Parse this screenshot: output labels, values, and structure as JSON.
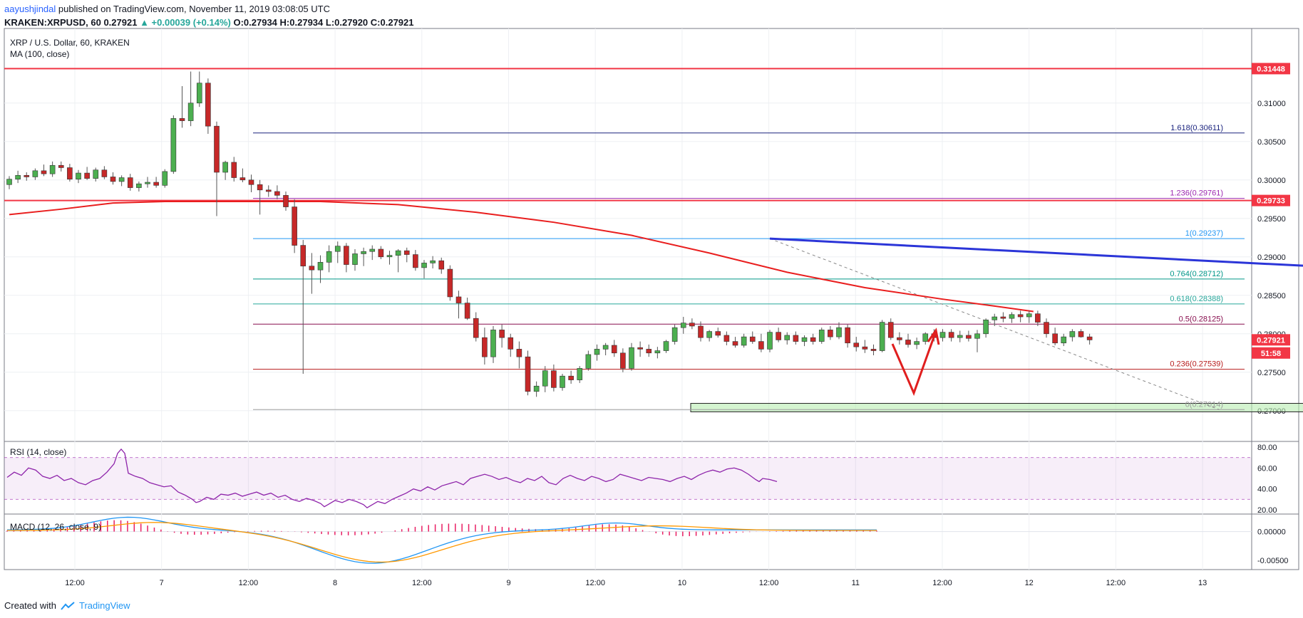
{
  "header": {
    "author": "aayushjindal",
    "published": "published on TradingView.com, November 11, 2019 03:08:05 UTC",
    "symbol": "KRAKEN:XRPUSD, 60",
    "last": "0.27921",
    "change": "▲ +0.00039 (+0.14%)",
    "ohlc": {
      "O": "0.27934",
      "H": "0.27934",
      "L": "0.27920",
      "C": "0.27921"
    }
  },
  "footer": {
    "created_with": "Created with",
    "brand": "TradingView"
  },
  "chart_data": {
    "type": "candlestick",
    "title": "XRP / U.S. Dollar, 60, KRAKEN",
    "indicator_label": "MA (100, close)",
    "ylim": [
      0.266,
      0.3197
    ],
    "price_axis_ticks": [
      "0.31000",
      "0.30500",
      "0.30000",
      "0.29500",
      "0.29000",
      "0.28500",
      "0.28000",
      "0.27500",
      "0.27000"
    ],
    "x_tick_labels": [
      "12:00",
      "7",
      "12:00",
      "8",
      "12:00",
      "9",
      "12:00",
      "10",
      "12:00",
      "11",
      "12:00",
      "12",
      "12:00",
      "13"
    ],
    "price_badges": [
      {
        "label": "0.31448",
        "value": 0.31448,
        "color": "#f23645"
      },
      {
        "label": "0.29733",
        "value": 0.29733,
        "color": "#f23645"
      },
      {
        "label": "0.27921",
        "value": 0.27921,
        "color": "#f23645"
      },
      {
        "label": "51:58",
        "value": 0.2775,
        "color": "#f23645"
      }
    ],
    "horizontal_lines": [
      {
        "value": 0.31448,
        "color": "#f23645"
      },
      {
        "value": 0.29733,
        "color": "#f23645"
      }
    ],
    "fib_levels": [
      {
        "label": "1.618(0.30611)",
        "value": 0.30611,
        "color": "#1a237e"
      },
      {
        "label": "1.236(0.29761)",
        "value": 0.29761,
        "color": "#9c27b0"
      },
      {
        "label": "1(0.29237)",
        "value": 0.29237,
        "color": "#2196f3"
      },
      {
        "label": "0.764(0.28712)",
        "value": 0.28712,
        "color": "#009688"
      },
      {
        "label": "0.618(0.28388)",
        "value": 0.28388,
        "color": "#26a69a"
      },
      {
        "label": "0.5(0.28125)",
        "value": 0.28125,
        "color": "#880e4f"
      },
      {
        "label": "0.236(0.27539)",
        "value": 0.27539,
        "color": "#b71c1c"
      },
      {
        "label": "0(0.27014)",
        "value": 0.27014,
        "color": "#9e9e9e"
      }
    ],
    "trendline": {
      "from": [
        88,
        0.29237
      ],
      "to": [
        283,
        0.28125
      ],
      "color": "#2b35d8"
    },
    "support_zone": {
      "from_index": 80,
      "to_index": 284,
      "low": 0.26985,
      "high": 0.27095,
      "color": "#b7ecb0"
    },
    "candles_ohlc_hourly": [
      [
        0.2994,
        0.3005,
        0.2988,
        0.3001
      ],
      [
        0.3001,
        0.3012,
        0.2996,
        0.3006
      ],
      [
        0.3006,
        0.301,
        0.2999,
        0.3004
      ],
      [
        0.3004,
        0.3015,
        0.3,
        0.3012
      ],
      [
        0.3012,
        0.302,
        0.3005,
        0.3008
      ],
      [
        0.3008,
        0.3024,
        0.3004,
        0.3019
      ],
      [
        0.3019,
        0.3024,
        0.3011,
        0.3016
      ],
      [
        0.3016,
        0.3021,
        0.2998,
        0.3001
      ],
      [
        0.3001,
        0.3013,
        0.2996,
        0.3009
      ],
      [
        0.3009,
        0.3017,
        0.3,
        0.3002
      ],
      [
        0.3002,
        0.3016,
        0.2998,
        0.3013
      ],
      [
        0.3013,
        0.3018,
        0.3001,
        0.3004
      ],
      [
        0.3004,
        0.301,
        0.2994,
        0.2998
      ],
      [
        0.2998,
        0.3006,
        0.2992,
        0.3003
      ],
      [
        0.3003,
        0.3008,
        0.2986,
        0.299
      ],
      [
        0.299,
        0.2998,
        0.2985,
        0.2995
      ],
      [
        0.2995,
        0.3004,
        0.299,
        0.2997
      ],
      [
        0.2997,
        0.3004,
        0.299,
        0.2993
      ],
      [
        0.2993,
        0.3014,
        0.299,
        0.3011
      ],
      [
        0.3011,
        0.3084,
        0.3008,
        0.308
      ],
      [
        0.308,
        0.3122,
        0.3068,
        0.3077
      ],
      [
        0.3077,
        0.3141,
        0.307,
        0.31
      ],
      [
        0.31,
        0.3141,
        0.3095,
        0.3126
      ],
      [
        0.3126,
        0.3132,
        0.306,
        0.307
      ],
      [
        0.307,
        0.3076,
        0.2953,
        0.301
      ],
      [
        0.301,
        0.3025,
        0.3,
        0.3023
      ],
      [
        0.3023,
        0.303,
        0.2998,
        0.3003
      ],
      [
        0.3003,
        0.3015,
        0.2997,
        0.3
      ],
      [
        0.3,
        0.3007,
        0.2984,
        0.2994
      ],
      [
        0.2994,
        0.3,
        0.2955,
        0.2987
      ],
      [
        0.2987,
        0.2993,
        0.2978,
        0.2985
      ],
      [
        0.2985,
        0.2993,
        0.2975,
        0.298
      ],
      [
        0.298,
        0.2985,
        0.296,
        0.2965
      ],
      [
        0.2965,
        0.2975,
        0.2905,
        0.2915
      ],
      [
        0.2915,
        0.2922,
        0.2748,
        0.2888
      ],
      [
        0.2888,
        0.2905,
        0.2852,
        0.2883
      ],
      [
        0.2883,
        0.2902,
        0.2866,
        0.2893
      ],
      [
        0.2893,
        0.2915,
        0.288,
        0.2907
      ],
      [
        0.2907,
        0.292,
        0.2892,
        0.2914
      ],
      [
        0.2914,
        0.2918,
        0.288,
        0.289
      ],
      [
        0.289,
        0.291,
        0.2882,
        0.2904
      ],
      [
        0.2904,
        0.2912,
        0.2888,
        0.2907
      ],
      [
        0.2907,
        0.2915,
        0.2896,
        0.291
      ],
      [
        0.291,
        0.2914,
        0.2897,
        0.29
      ],
      [
        0.29,
        0.2908,
        0.289,
        0.2902
      ],
      [
        0.2902,
        0.291,
        0.288,
        0.2908
      ],
      [
        0.2908,
        0.2912,
        0.2893,
        0.2903
      ],
      [
        0.2903,
        0.2909,
        0.2882,
        0.2886
      ],
      [
        0.2886,
        0.2896,
        0.2872,
        0.2892
      ],
      [
        0.2892,
        0.2901,
        0.2885,
        0.2895
      ],
      [
        0.2895,
        0.2899,
        0.2878,
        0.2884
      ],
      [
        0.2884,
        0.2889,
        0.2843,
        0.2848
      ],
      [
        0.2848,
        0.2856,
        0.282,
        0.284
      ],
      [
        0.284,
        0.2847,
        0.2818,
        0.282
      ],
      [
        0.282,
        0.2828,
        0.279,
        0.2795
      ],
      [
        0.2795,
        0.2808,
        0.276,
        0.277
      ],
      [
        0.277,
        0.281,
        0.2762,
        0.2805
      ],
      [
        0.2805,
        0.2812,
        0.2782,
        0.2795
      ],
      [
        0.2795,
        0.28,
        0.277,
        0.278
      ],
      [
        0.278,
        0.279,
        0.2755,
        0.277
      ],
      [
        0.277,
        0.2778,
        0.272,
        0.2725
      ],
      [
        0.2725,
        0.2738,
        0.2718,
        0.2732
      ],
      [
        0.2732,
        0.2758,
        0.2724,
        0.2752
      ],
      [
        0.2752,
        0.276,
        0.2725,
        0.273
      ],
      [
        0.273,
        0.2748,
        0.2726,
        0.2745
      ],
      [
        0.2745,
        0.2752,
        0.2735,
        0.274
      ],
      [
        0.274,
        0.2758,
        0.2736,
        0.2755
      ],
      [
        0.2755,
        0.2778,
        0.2752,
        0.2773
      ],
      [
        0.2773,
        0.2786,
        0.2765,
        0.278
      ],
      [
        0.278,
        0.2788,
        0.2772,
        0.2785
      ],
      [
        0.2785,
        0.2792,
        0.277,
        0.2775
      ],
      [
        0.2775,
        0.2781,
        0.275,
        0.2755
      ],
      [
        0.2755,
        0.2788,
        0.2752,
        0.2782
      ],
      [
        0.2782,
        0.279,
        0.277,
        0.278
      ],
      [
        0.278,
        0.2786,
        0.277,
        0.2775
      ],
      [
        0.2775,
        0.2783,
        0.2768,
        0.2778
      ],
      [
        0.2778,
        0.2792,
        0.2775,
        0.279
      ],
      [
        0.279,
        0.2812,
        0.2786,
        0.2808
      ],
      [
        0.2808,
        0.2822,
        0.28,
        0.2814
      ],
      [
        0.2814,
        0.282,
        0.2806,
        0.281
      ],
      [
        0.281,
        0.2816,
        0.279,
        0.2795
      ],
      [
        0.2795,
        0.2805,
        0.279,
        0.2803
      ],
      [
        0.2803,
        0.2808,
        0.2795,
        0.2798
      ],
      [
        0.2798,
        0.2803,
        0.2785,
        0.279
      ],
      [
        0.279,
        0.2796,
        0.2782,
        0.2785
      ],
      [
        0.2785,
        0.28,
        0.2782,
        0.2796
      ],
      [
        0.2796,
        0.2803,
        0.2787,
        0.279
      ],
      [
        0.279,
        0.28,
        0.2776,
        0.278
      ],
      [
        0.278,
        0.2805,
        0.2776,
        0.2802
      ],
      [
        0.2802,
        0.2808,
        0.2789,
        0.2792
      ],
      [
        0.2792,
        0.2802,
        0.2786,
        0.2798
      ],
      [
        0.2798,
        0.2803,
        0.2786,
        0.279
      ],
      [
        0.279,
        0.2798,
        0.2784,
        0.2795
      ],
      [
        0.2795,
        0.28,
        0.2786,
        0.279
      ],
      [
        0.279,
        0.2808,
        0.2787,
        0.2805
      ],
      [
        0.2805,
        0.281,
        0.2792,
        0.2796
      ],
      [
        0.2796,
        0.2815,
        0.2793,
        0.2808
      ],
      [
        0.2808,
        0.2812,
        0.2782,
        0.2788
      ],
      [
        0.2788,
        0.2796,
        0.2777,
        0.2783
      ],
      [
        0.2783,
        0.2792,
        0.2775,
        0.278
      ],
      [
        0.278,
        0.2786,
        0.2772,
        0.2778
      ],
      [
        0.2778,
        0.2818,
        0.2776,
        0.2815
      ],
      [
        0.2815,
        0.282,
        0.2792,
        0.2795
      ],
      [
        0.2795,
        0.2802,
        0.2786,
        0.2792
      ],
      [
        0.2792,
        0.28,
        0.2782,
        0.2786
      ],
      [
        0.2786,
        0.2795,
        0.278,
        0.279
      ],
      [
        0.279,
        0.2802,
        0.2786,
        0.28
      ],
      [
        0.28,
        0.2806,
        0.279,
        0.2795
      ],
      [
        0.2795,
        0.2806,
        0.279,
        0.2802
      ],
      [
        0.2802,
        0.2806,
        0.279,
        0.2795
      ],
      [
        0.2795,
        0.2804,
        0.2789,
        0.2798
      ],
      [
        0.2798,
        0.2804,
        0.279,
        0.2794
      ],
      [
        0.2794,
        0.2805,
        0.2776,
        0.28
      ],
      [
        0.28,
        0.282,
        0.2795,
        0.2818
      ],
      [
        0.2818,
        0.2826,
        0.281,
        0.2822
      ],
      [
        0.2822,
        0.2828,
        0.2815,
        0.282
      ],
      [
        0.282,
        0.2828,
        0.2814,
        0.2825
      ],
      [
        0.2825,
        0.283,
        0.2815,
        0.2822
      ],
      [
        0.2822,
        0.283,
        0.2814,
        0.2826
      ],
      [
        0.2826,
        0.283,
        0.281,
        0.2815
      ],
      [
        0.2815,
        0.282,
        0.2795,
        0.28
      ],
      [
        0.28,
        0.2808,
        0.2785,
        0.2788
      ],
      [
        0.2788,
        0.28,
        0.2784,
        0.2796
      ],
      [
        0.2796,
        0.2806,
        0.279,
        0.2803
      ],
      [
        0.2803,
        0.2806,
        0.2795,
        0.2796
      ],
      [
        0.2796,
        0.28,
        0.2786,
        0.2792
      ]
    ],
    "ma100": [
      [
        0,
        0.2955
      ],
      [
        20,
        0.2962
      ],
      [
        40,
        0.297
      ],
      [
        60,
        0.2972
      ],
      [
        80,
        0.2972
      ],
      [
        120,
        0.2972
      ],
      [
        150,
        0.2968
      ],
      [
        180,
        0.2958
      ],
      [
        210,
        0.2945
      ],
      [
        240,
        0.2928
      ],
      [
        270,
        0.2905
      ],
      [
        300,
        0.288
      ],
      [
        330,
        0.286
      ],
      [
        360,
        0.2845
      ],
      [
        380,
        0.2836
      ],
      [
        395,
        0.2829
      ]
    ],
    "rsi": {
      "label": "RSI (14, close)",
      "levels": [
        70,
        30
      ],
      "ticks": [
        "80.00",
        "60.00",
        "40.00",
        "20.00"
      ],
      "ylim": [
        16,
        84
      ],
      "values": [
        [
          0,
          51
        ],
        [
          10,
          56
        ],
        [
          20,
          53
        ],
        [
          30,
          60
        ],
        [
          40,
          58
        ],
        [
          50,
          52
        ],
        [
          60,
          50
        ],
        [
          70,
          53
        ],
        [
          80,
          48
        ],
        [
          90,
          50
        ],
        [
          100,
          46
        ],
        [
          110,
          44
        ],
        [
          120,
          48
        ],
        [
          130,
          50
        ],
        [
          140,
          56
        ],
        [
          150,
          64
        ],
        [
          155,
          74
        ],
        [
          160,
          78
        ],
        [
          165,
          74
        ],
        [
          170,
          55
        ],
        [
          180,
          52
        ],
        [
          190,
          50
        ],
        [
          200,
          46
        ],
        [
          210,
          44
        ],
        [
          220,
          42
        ],
        [
          230,
          43
        ],
        [
          240,
          37
        ],
        [
          250,
          34
        ],
        [
          260,
          30
        ],
        [
          265,
          27
        ],
        [
          270,
          28
        ],
        [
          280,
          32
        ],
        [
          290,
          30
        ],
        [
          300,
          35
        ],
        [
          310,
          34
        ],
        [
          320,
          36
        ],
        [
          330,
          33
        ],
        [
          340,
          35
        ],
        [
          350,
          37
        ],
        [
          360,
          34
        ],
        [
          370,
          36
        ],
        [
          380,
          32
        ],
        [
          390,
          34
        ],
        [
          400,
          30
        ],
        [
          410,
          28
        ],
        [
          420,
          31
        ],
        [
          430,
          29
        ],
        [
          440,
          26
        ],
        [
          445,
          23
        ],
        [
          450,
          25
        ],
        [
          460,
          29
        ],
        [
          470,
          27
        ],
        [
          480,
          30
        ],
        [
          490,
          28
        ],
        [
          500,
          25
        ],
        [
          505,
          22
        ],
        [
          510,
          24
        ],
        [
          520,
          28
        ],
        [
          530,
          26
        ],
        [
          540,
          30
        ],
        [
          550,
          33
        ],
        [
          560,
          36
        ],
        [
          570,
          40
        ],
        [
          580,
          38
        ],
        [
          590,
          42
        ],
        [
          600,
          39
        ],
        [
          610,
          43
        ],
        [
          620,
          45
        ],
        [
          630,
          47
        ],
        [
          640,
          44
        ],
        [
          650,
          50
        ],
        [
          660,
          52
        ],
        [
          670,
          54
        ],
        [
          680,
          52
        ],
        [
          690,
          49
        ],
        [
          700,
          51
        ],
        [
          710,
          48
        ],
        [
          720,
          46
        ],
        [
          730,
          50
        ],
        [
          740,
          48
        ],
        [
          750,
          52
        ],
        [
          760,
          46
        ],
        [
          770,
          44
        ],
        [
          780,
          50
        ],
        [
          790,
          53
        ],
        [
          800,
          50
        ],
        [
          810,
          48
        ],
        [
          820,
          52
        ],
        [
          830,
          50
        ],
        [
          840,
          47
        ],
        [
          850,
          49
        ],
        [
          860,
          54
        ],
        [
          870,
          52
        ],
        [
          880,
          50
        ],
        [
          890,
          48
        ],
        [
          900,
          51
        ],
        [
          910,
          50
        ],
        [
          920,
          49
        ],
        [
          930,
          47
        ],
        [
          940,
          50
        ],
        [
          950,
          52
        ],
        [
          960,
          49
        ],
        [
          970,
          53
        ],
        [
          980,
          56
        ],
        [
          990,
          58
        ],
        [
          1000,
          56
        ],
        [
          1010,
          59
        ],
        [
          1020,
          60
        ],
        [
          1030,
          58
        ],
        [
          1040,
          54
        ],
        [
          1050,
          49
        ],
        [
          1055,
          47
        ],
        [
          1060,
          50
        ],
        [
          1070,
          49
        ],
        [
          1080,
          47
        ]
      ]
    },
    "macd": {
      "label": "MACD (12, 26, close, 9)",
      "ticks": [
        "0.00000",
        "-0.00500"
      ],
      "ylim": [
        -0.0066,
        0.0028
      ]
    }
  }
}
